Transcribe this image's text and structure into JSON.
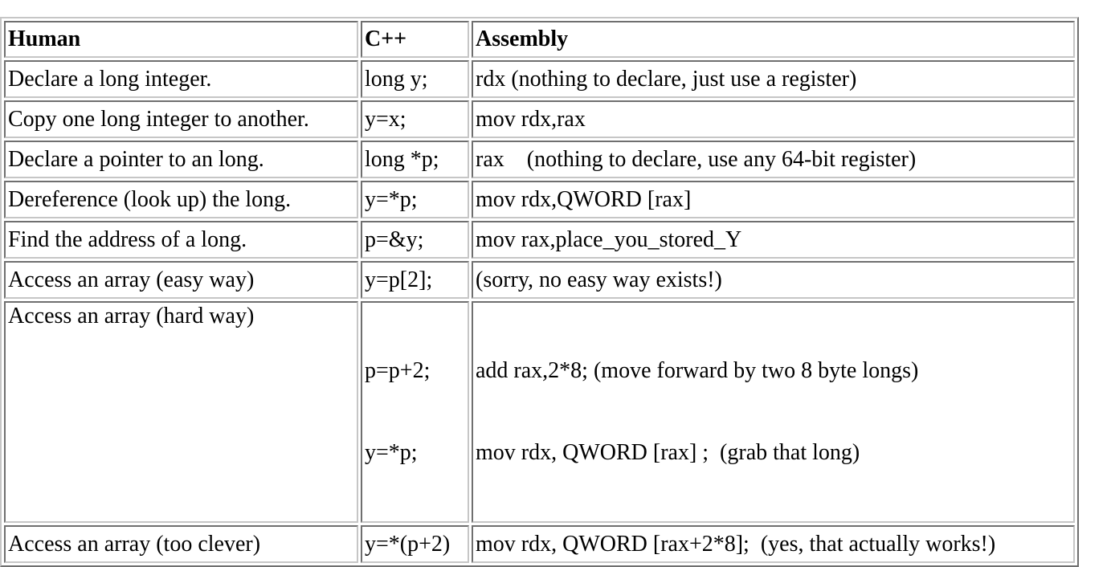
{
  "table": {
    "headers": [
      "Human",
      "C++",
      "Assembly"
    ],
    "rows": [
      {
        "human": "Declare a long integer.",
        "cpp": [
          "long y;"
        ],
        "asm": [
          "rdx (nothing to declare, just use a register)"
        ]
      },
      {
        "human": "Copy one long integer to another.",
        "cpp": [
          "y=x;"
        ],
        "asm": [
          "mov rdx,rax"
        ]
      },
      {
        "human": "Declare a pointer to an long.",
        "cpp": [
          "long *p;"
        ],
        "asm": [
          "rax    (nothing to declare, use any 64-bit register)"
        ]
      },
      {
        "human": "Dereference (look up) the long.",
        "cpp": [
          "y=*p;"
        ],
        "asm": [
          "mov rdx,QWORD [rax]"
        ]
      },
      {
        "human": "Find the address of a long.",
        "cpp": [
          "p=&y;"
        ],
        "asm": [
          "mov rax,place_you_stored_Y"
        ]
      },
      {
        "human": "Access an array (easy way)",
        "cpp": [
          "y=p[2];"
        ],
        "asm": [
          "(sorry, no easy way exists!)"
        ]
      },
      {
        "human": "Access an array (hard way)",
        "cpp": [
          "p=p+2;",
          "y=*p;"
        ],
        "asm": [
          "add rax,2*8; (move forward by two 8 byte longs)",
          "mov rdx, QWORD [rax] ;  (grab that long)"
        ]
      },
      {
        "human": "Access an array (too clever)",
        "cpp": [
          "y=*(p+2)"
        ],
        "asm": [
          "mov rdx, QWORD [rax+2*8];  (yes, that actually works!)"
        ]
      }
    ]
  }
}
